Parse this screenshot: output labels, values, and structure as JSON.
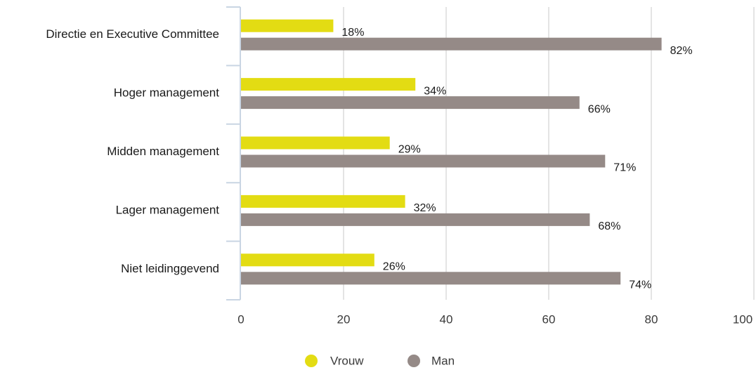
{
  "chart_data": {
    "type": "bar",
    "orientation": "horizontal",
    "categories": [
      "Directie en Executive Committee",
      "Hoger management",
      "Midden management",
      "Lager management",
      "Niet leidinggevend"
    ],
    "series": [
      {
        "name": "Vrouw",
        "color": "#e3dc13",
        "values": [
          18,
          34,
          29,
          32,
          26
        ],
        "labels": [
          "18%",
          "34%",
          "29%",
          "32%",
          "26%"
        ]
      },
      {
        "name": "Man",
        "color": "#958a87",
        "values": [
          82,
          66,
          71,
          68,
          74
        ],
        "labels": [
          "82%",
          "66%",
          "71%",
          "68%",
          "74%"
        ]
      }
    ],
    "xlim": [
      0,
      100
    ],
    "xticks": [
      0,
      20,
      40,
      60,
      80,
      100
    ],
    "xtick_labels": [
      "0",
      "20",
      "40",
      "60",
      "80",
      "100"
    ],
    "grid": true,
    "legend_position": "bottom-center"
  }
}
